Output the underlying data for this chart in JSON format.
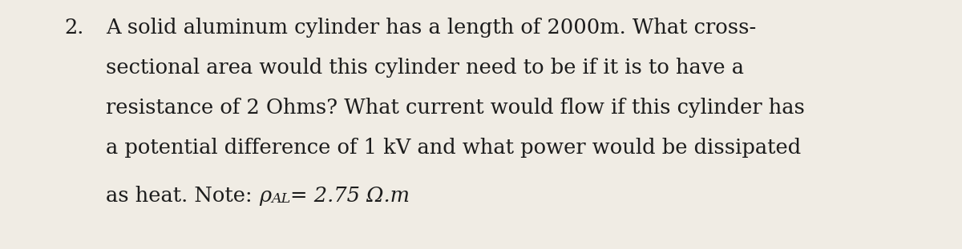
{
  "background_color": "#f0ece4",
  "text_color": "#1c1c1c",
  "number": "2.",
  "line1": "A solid aluminum cylinder has a length of 2000m. What cross-",
  "line2": "sectional area would this cylinder need to be if it is to have a",
  "line3": "resistance of 2 Ohms? What current would flow if this cylinder has",
  "line4": "a potential difference of 1 kV and what power would be dissipated",
  "line5_plain": "as heat. Note: ",
  "line5_rho": "ρ",
  "line5_sub": "AL",
  "line5_eq": "= 2.75 Ω.m",
  "font_size": 18.5,
  "font_family": "DejaVu Serif",
  "figsize": [
    12.0,
    3.11
  ],
  "dpi": 100
}
